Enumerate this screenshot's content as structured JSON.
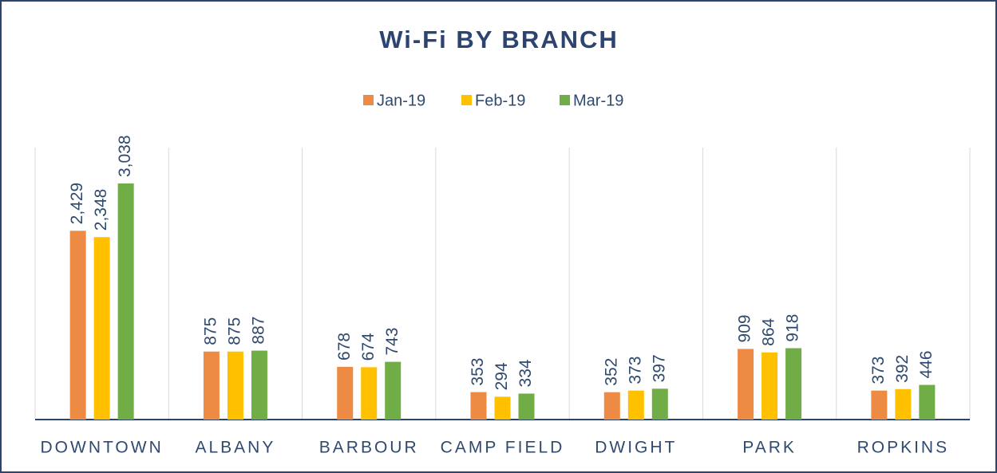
{
  "chart_data": {
    "type": "bar",
    "title": "Wi-Fi BY BRANCH",
    "categories": [
      "DOWNTOWN",
      "ALBANY",
      "BARBOUR",
      "CAMP FIELD",
      "DWIGHT",
      "PARK",
      "ROPKINS"
    ],
    "series": [
      {
        "name": "Jan-19",
        "color": "#ed8b44",
        "values": [
          2429,
          875,
          678,
          353,
          352,
          909,
          373
        ],
        "value_labels": [
          "2,429",
          "875",
          "678",
          "353",
          "352",
          "909",
          "373"
        ]
      },
      {
        "name": "Feb-19",
        "color": "#ffc000",
        "values": [
          2348,
          875,
          674,
          294,
          373,
          864,
          392
        ],
        "value_labels": [
          "2,348",
          "875",
          "674",
          "294",
          "373",
          "864",
          "392"
        ]
      },
      {
        "name": "Mar-19",
        "color": "#70ad47",
        "values": [
          3038,
          887,
          743,
          334,
          397,
          918,
          446
        ],
        "value_labels": [
          "3,038",
          "887",
          "743",
          "334",
          "397",
          "918",
          "446"
        ]
      }
    ],
    "ylim": [
      0,
      3500
    ],
    "legend": "top"
  }
}
